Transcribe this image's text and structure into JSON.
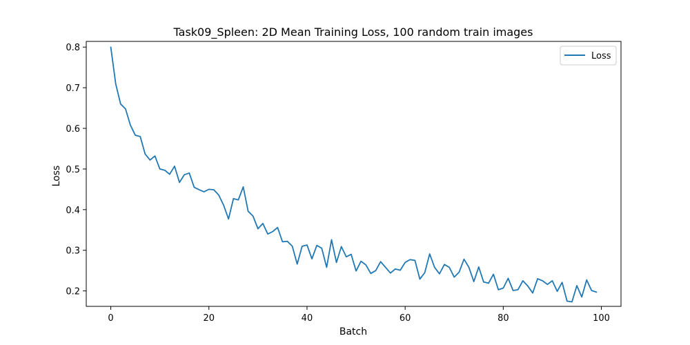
{
  "chart_data": {
    "type": "line",
    "title": "Task09_Spleen: 2D Mean Training Loss, 100 random train images",
    "xlabel": "Batch",
    "ylabel": "Loss",
    "xlim": [
      -5,
      104
    ],
    "ylim": [
      0.162,
      0.814
    ],
    "xticks": [
      0,
      20,
      40,
      60,
      80,
      100
    ],
    "xtick_labels": [
      "0",
      "20",
      "40",
      "60",
      "80",
      "100"
    ],
    "yticks": [
      0.2,
      0.3,
      0.4,
      0.5,
      0.6,
      0.7,
      0.8
    ],
    "ytick_labels": [
      "0.2",
      "0.3",
      "0.4",
      "0.5",
      "0.6",
      "0.7",
      "0.8"
    ],
    "grid": false,
    "legend": {
      "position": "upper right",
      "entries": [
        "Loss"
      ]
    },
    "series": [
      {
        "name": "Loss",
        "color": "#1f77b4",
        "x": [
          0,
          1,
          2,
          3,
          4,
          5,
          6,
          7,
          8,
          9,
          10,
          11,
          12,
          13,
          14,
          15,
          16,
          17,
          18,
          19,
          20,
          21,
          22,
          23,
          24,
          25,
          26,
          27,
          28,
          29,
          30,
          31,
          32,
          33,
          34,
          35,
          36,
          37,
          38,
          39,
          40,
          41,
          42,
          43,
          44,
          45,
          46,
          47,
          48,
          49,
          50,
          51,
          52,
          53,
          54,
          55,
          56,
          57,
          58,
          59,
          60,
          61,
          62,
          63,
          64,
          65,
          66,
          67,
          68,
          69,
          70,
          71,
          72,
          73,
          74,
          75,
          76,
          77,
          78,
          79,
          80,
          81,
          82,
          83,
          84,
          85,
          86,
          87,
          88,
          89,
          90,
          91,
          92,
          93,
          94,
          95,
          96,
          97,
          98,
          99
        ],
        "values": [
          0.8,
          0.71,
          0.66,
          0.648,
          0.608,
          0.583,
          0.58,
          0.537,
          0.522,
          0.532,
          0.5,
          0.497,
          0.487,
          0.507,
          0.467,
          0.486,
          0.49,
          0.455,
          0.449,
          0.444,
          0.45,
          0.449,
          0.436,
          0.411,
          0.377,
          0.427,
          0.424,
          0.456,
          0.396,
          0.384,
          0.353,
          0.366,
          0.34,
          0.346,
          0.356,
          0.321,
          0.322,
          0.31,
          0.266,
          0.31,
          0.313,
          0.279,
          0.312,
          0.305,
          0.258,
          0.326,
          0.27,
          0.309,
          0.284,
          0.29,
          0.249,
          0.273,
          0.264,
          0.243,
          0.25,
          0.272,
          0.258,
          0.244,
          0.254,
          0.251,
          0.27,
          0.277,
          0.275,
          0.229,
          0.245,
          0.291,
          0.258,
          0.242,
          0.265,
          0.258,
          0.234,
          0.246,
          0.278,
          0.258,
          0.223,
          0.259,
          0.222,
          0.219,
          0.241,
          0.203,
          0.207,
          0.231,
          0.201,
          0.203,
          0.225,
          0.212,
          0.195,
          0.23,
          0.225,
          0.216,
          0.225,
          0.199,
          0.221,
          0.175,
          0.173,
          0.213,
          0.185,
          0.227,
          0.201,
          0.197
        ]
      }
    ]
  }
}
